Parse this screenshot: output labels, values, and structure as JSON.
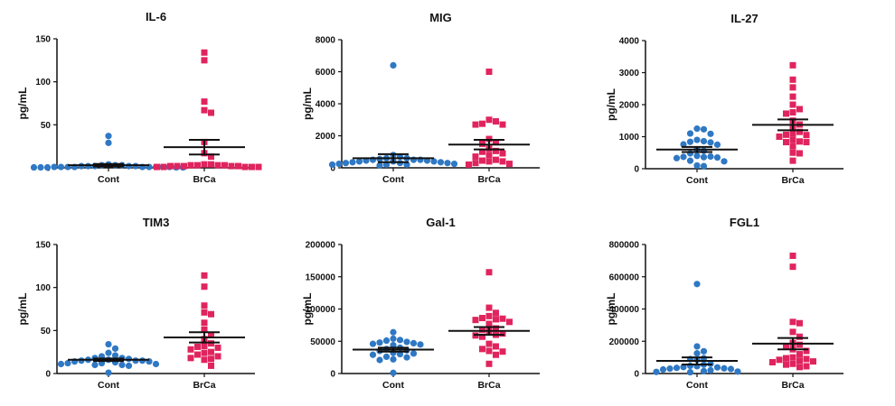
{
  "chart_data": [
    {
      "type": "scatter",
      "title": "IL-6",
      "ylabel": "pg/mL",
      "categories": [
        "Cont",
        "BrCa"
      ],
      "ylim": [
        0,
        150
      ],
      "yticks": [
        0,
        50,
        100,
        150
      ],
      "series": [
        {
          "values": [
            37,
            29,
            4,
            3,
            3,
            2,
            2,
            2,
            2,
            1,
            1,
            1,
            1,
            1,
            1,
            1,
            0.5,
            0.5,
            0.5,
            0.5,
            3,
            2,
            1,
            1,
            0.5
          ],
          "mean": 3,
          "sem": 1.5
        },
        {
          "values": [
            134,
            125,
            77,
            67,
            64,
            30,
            17,
            13,
            4,
            4,
            3,
            3,
            3,
            2,
            2,
            2,
            2,
            1,
            1,
            1,
            1,
            1,
            2,
            3
          ],
          "mean": 24,
          "sem": 8.5
        }
      ]
    },
    {
      "type": "scatter",
      "title": "MIG",
      "ylabel": "pg/mL",
      "categories": [
        "Cont",
        "BrCa"
      ],
      "ylim": [
        0,
        8000
      ],
      "yticks": [
        0,
        2000,
        4000,
        6000,
        8000
      ],
      "series": [
        {
          "values": [
            6400,
            800,
            700,
            600,
            600,
            550,
            500,
            500,
            450,
            400,
            400,
            400,
            350,
            300,
            300,
            300,
            250,
            250,
            200,
            200,
            200,
            150,
            500,
            450,
            350
          ],
          "mean": 600,
          "sem": 250
        },
        {
          "values": [
            6000,
            3000,
            2900,
            2750,
            2700,
            2700,
            1800,
            1600,
            1500,
            1200,
            1050,
            1000,
            900,
            800,
            700,
            500,
            450,
            400,
            400,
            300,
            250,
            200
          ],
          "mean": 1450,
          "sem": 300
        }
      ]
    },
    {
      "type": "scatter",
      "title": "IL-27",
      "ylabel": "pg/mL",
      "categories": [
        "Cont",
        "BrCa"
      ],
      "ylim": [
        0,
        4000
      ],
      "yticks": [
        0,
        1000,
        2000,
        3000,
        4000
      ],
      "series": [
        {
          "values": [
            1250,
            1230,
            1100,
            1090,
            900,
            860,
            840,
            820,
            760,
            750,
            600,
            560,
            480,
            400,
            380,
            370,
            360,
            350,
            330,
            250,
            230,
            100,
            80
          ],
          "mean": 600,
          "sem": 80
        },
        {
          "values": [
            3230,
            2780,
            2540,
            2250,
            2000,
            1860,
            1760,
            1720,
            1500,
            1380,
            1300,
            1150,
            1100,
            1060,
            1050,
            1000,
            900,
            850,
            830,
            830,
            700,
            500,
            480,
            250
          ],
          "mean": 1370,
          "sem": 170
        }
      ]
    },
    {
      "type": "scatter",
      "title": "TIM3",
      "ylabel": "pg/mL",
      "categories": [
        "Cont",
        "BrCa"
      ],
      "ylim": [
        0,
        150
      ],
      "yticks": [
        0,
        50,
        100,
        150
      ],
      "series": [
        {
          "values": [
            34,
            29,
            24,
            21,
            20,
            18,
            18,
            17,
            16,
            16,
            15,
            15,
            15,
            14,
            14,
            13,
            12,
            12,
            11,
            11,
            10,
            10,
            9,
            1
          ],
          "mean": 16,
          "sem": 1.5
        },
        {
          "values": [
            114,
            101,
            79,
            71,
            69,
            59,
            51,
            45,
            40,
            35,
            32,
            31,
            30,
            28,
            25,
            24,
            22,
            20,
            18,
            17,
            16,
            9
          ],
          "mean": 42,
          "sem": 6
        }
      ]
    },
    {
      "type": "scatter",
      "title": "Gal-1",
      "ylabel": "pg/mL",
      "categories": [
        "Cont",
        "BrCa"
      ],
      "ylim": [
        0,
        200000
      ],
      "yticks": [
        0,
        50000,
        100000,
        150000,
        200000
      ],
      "series": [
        {
          "values": [
            64000,
            54000,
            52000,
            51000,
            49000,
            48000,
            47000,
            46000,
            45000,
            44000,
            40000,
            38000,
            36000,
            35000,
            32000,
            31000,
            30000,
            29000,
            26000,
            25000,
            22000,
            21000,
            1000
          ],
          "mean": 37000,
          "sem": 3000
        },
        {
          "values": [
            157000,
            102000,
            94000,
            89000,
            86000,
            85000,
            84000,
            83000,
            80000,
            77000,
            70000,
            68000,
            66000,
            62000,
            60000,
            59000,
            57000,
            46000,
            42000,
            38000,
            35000,
            34000,
            29000,
            15000
          ],
          "mean": 66000,
          "sem": 6000
        }
      ]
    },
    {
      "type": "scatter",
      "title": "FGL1",
      "ylabel": "pg/mL",
      "categories": [
        "Cont",
        "BrCa"
      ],
      "ylim": [
        0,
        800000
      ],
      "yticks": [
        0,
        200000,
        400000,
        600000,
        800000
      ],
      "series": [
        {
          "values": [
            555000,
            168000,
            138000,
            125000,
            95000,
            90000,
            85000,
            60000,
            55000,
            48000,
            45000,
            40000,
            38000,
            35000,
            32000,
            30000,
            28000,
            25000,
            20000,
            15000,
            12000,
            10000,
            8000
          ],
          "mean": 78000,
          "sem": 22000
        },
        {
          "values": [
            730000,
            662000,
            320000,
            312000,
            258000,
            228000,
            190000,
            178000,
            170000,
            150000,
            140000,
            120000,
            100000,
            95000,
            90000,
            85000,
            80000,
            75000,
            70000,
            60000,
            55000,
            45000,
            40000
          ],
          "mean": 185000,
          "sem": 35000
        }
      ]
    }
  ],
  "colors": {
    "cont": "#2f78c4",
    "brca": "#e0245e",
    "axis": "#111111"
  }
}
